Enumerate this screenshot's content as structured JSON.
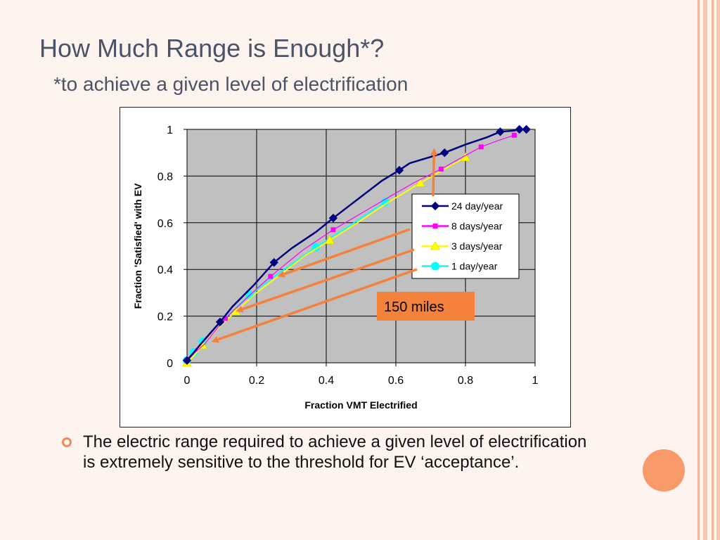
{
  "slide": {
    "title": "How Much Range is Enough*?",
    "subtitle": "*to achieve a given level of electrification",
    "bullet": "The electric range required to achieve a given level of electrification is extremely sensitive to the threshold for EV ‘acceptance’."
  },
  "colors": {
    "background": "#fdf4ef",
    "accent": "#f08a5d",
    "stripe": "#f5b596",
    "plot_area": "#c0c0c0",
    "callout": "#f5823c"
  },
  "chart_data": {
    "type": "line",
    "xlabel": "Fraction VMT Electrified",
    "ylabel": "Fraction 'Satisfied' with EV",
    "xlim": [
      0,
      1
    ],
    "ylim": [
      0,
      1
    ],
    "xticks": [
      "0",
      "0.2",
      "0.4",
      "0.6",
      "0.8",
      "1"
    ],
    "yticks": [
      "0",
      "0.2",
      "0.4",
      "0.6",
      "0.8",
      "1"
    ],
    "grid": true,
    "legend_position": "right",
    "series": [
      {
        "name": "24 day/year",
        "color": "#000080",
        "marker": "diamond",
        "x": [
          0,
          0.045,
          0.095,
          0.13,
          0.19,
          0.25,
          0.3,
          0.37,
          0.42,
          0.49,
          0.56,
          0.61,
          0.64,
          0.74,
          0.8,
          0.86,
          0.9,
          0.94,
          0.955,
          0.975
        ],
        "y": [
          0.01,
          0.09,
          0.175,
          0.24,
          0.33,
          0.43,
          0.49,
          0.56,
          0.62,
          0.7,
          0.78,
          0.825,
          0.855,
          0.9,
          0.935,
          0.965,
          0.99,
          0.995,
          1.0,
          1.0
        ],
        "marked": [
          0,
          2,
          5,
          8,
          11,
          13,
          16,
          18,
          19
        ]
      },
      {
        "name": "8 days/year",
        "color": "#ff00ff",
        "marker": "square",
        "x": [
          0,
          0.02,
          0.05,
          0.11,
          0.18,
          0.24,
          0.33,
          0.42,
          0.5,
          0.58,
          0.65,
          0.73,
          0.79,
          0.845,
          0.89,
          0.94
        ],
        "y": [
          0.01,
          0.04,
          0.08,
          0.19,
          0.29,
          0.37,
          0.48,
          0.57,
          0.64,
          0.71,
          0.77,
          0.83,
          0.88,
          0.925,
          0.95,
          0.975
        ],
        "marked": [
          0,
          3,
          5,
          7,
          11,
          13,
          15
        ]
      },
      {
        "name": "3 days/year",
        "color": "#ffff00",
        "marker": "triangle",
        "x": [
          0,
          0.02,
          0.045,
          0.09,
          0.14,
          0.2,
          0.27,
          0.34,
          0.41,
          0.49,
          0.57,
          0.67,
          0.74,
          0.8
        ],
        "y": [
          0,
          0.03,
          0.075,
          0.15,
          0.22,
          0.3,
          0.38,
          0.46,
          0.525,
          0.6,
          0.68,
          0.77,
          0.83,
          0.88
        ],
        "marked": [
          0,
          2,
          4,
          8,
          11,
          13
        ]
      },
      {
        "name": "1 day/year",
        "color": "#00ffff",
        "marker": "circle",
        "x": [
          0,
          0.02,
          0.045,
          0.1,
          0.18,
          0.26,
          0.37,
          0.46,
          0.57
        ],
        "y": [
          0.01,
          0.045,
          0.09,
          0.18,
          0.29,
          0.38,
          0.495,
          0.58,
          0.69
        ],
        "marked": [
          0,
          1,
          2,
          4,
          6,
          8
        ]
      }
    ],
    "annotations": [
      {
        "text": "150 miles",
        "arrow_targets": [
          {
            "x": 0.71,
            "y": 0.92
          },
          {
            "x": 0.26,
            "y": 0.37
          },
          {
            "x": 0.14,
            "y": 0.22
          },
          {
            "x": 0.07,
            "y": 0.09
          }
        ]
      }
    ]
  }
}
